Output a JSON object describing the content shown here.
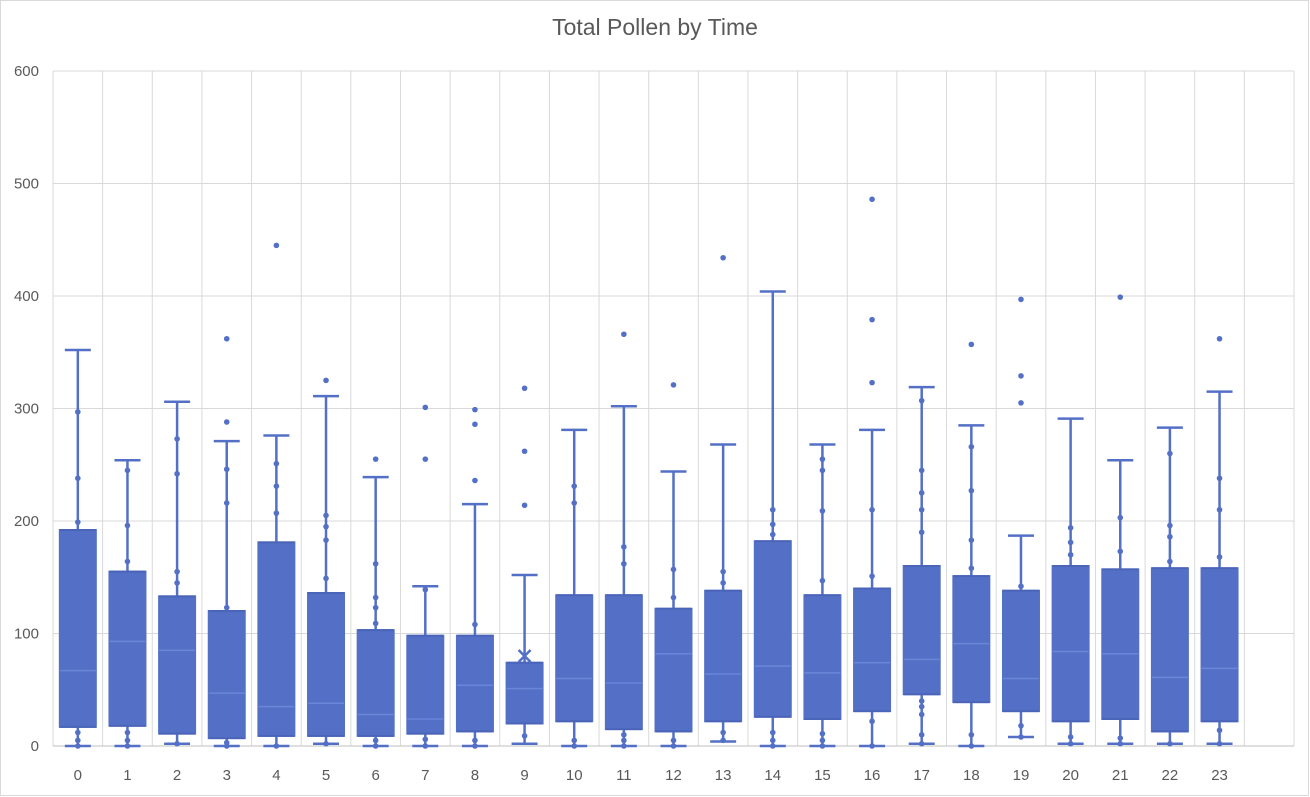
{
  "chart_data": {
    "type": "box",
    "title": "Total Pollen by Time",
    "xlabel": "",
    "ylabel": "",
    "ylim": [
      0,
      600
    ],
    "yticks": [
      0,
      100,
      200,
      300,
      400,
      500,
      600
    ],
    "grid": true,
    "legend": "none",
    "color": "#5470C6",
    "categories": [
      "0",
      "1",
      "2",
      "3",
      "4",
      "5",
      "6",
      "7",
      "8",
      "9",
      "10",
      "11",
      "12",
      "13",
      "14",
      "15",
      "16",
      "17",
      "18",
      "19",
      "20",
      "21",
      "22",
      "23"
    ],
    "boxes": [
      {
        "x": "0",
        "min": 0,
        "q1": 17,
        "median": 67,
        "q3": 192,
        "max": 352,
        "points": [
          0,
          5,
          12,
          199,
          238,
          297
        ]
      },
      {
        "x": "1",
        "min": 0,
        "q1": 18,
        "median": 93,
        "q3": 155,
        "max": 254,
        "points": [
          0,
          5,
          12,
          164,
          196,
          245
        ]
      },
      {
        "x": "2",
        "min": 2,
        "q1": 11,
        "median": 85,
        "q3": 133,
        "max": 306,
        "points": [
          2,
          145,
          155,
          242,
          273
        ]
      },
      {
        "x": "3",
        "min": 0,
        "q1": 7,
        "median": 47,
        "q3": 120,
        "max": 271,
        "points": [
          0,
          3,
          123,
          216,
          246,
          288,
          362
        ]
      },
      {
        "x": "4",
        "min": 0,
        "q1": 9,
        "median": 35,
        "q3": 181,
        "max": 276,
        "points": [
          0,
          207,
          231,
          251,
          445
        ]
      },
      {
        "x": "5",
        "min": 2,
        "q1": 9,
        "median": 38,
        "q3": 136,
        "max": 311,
        "points": [
          2,
          149,
          183,
          195,
          205,
          325
        ]
      },
      {
        "x": "6",
        "min": 0,
        "q1": 9,
        "median": 28,
        "q3": 103,
        "max": 239,
        "points": [
          0,
          5,
          109,
          123,
          132,
          162,
          255
        ]
      },
      {
        "x": "7",
        "min": 0,
        "q1": 11,
        "median": 24,
        "q3": 98,
        "max": 142,
        "points": [
          0,
          6,
          139,
          255,
          301
        ]
      },
      {
        "x": "8",
        "min": 0,
        "q1": 13,
        "median": 54,
        "q3": 98,
        "max": 215,
        "points": [
          0,
          5,
          108,
          236,
          286,
          299
        ]
      },
      {
        "x": "9",
        "min": 2,
        "q1": 20,
        "median": 51,
        "q3": 74,
        "max": 152,
        "points": [
          9,
          214,
          262,
          318
        ],
        "mean": 80
      },
      {
        "x": "10",
        "min": 0,
        "q1": 22,
        "median": 60,
        "q3": 134,
        "max": 281,
        "points": [
          0,
          5,
          216,
          231
        ]
      },
      {
        "x": "11",
        "min": 0,
        "q1": 15,
        "median": 56,
        "q3": 134,
        "max": 302,
        "points": [
          0,
          5,
          10,
          162,
          177,
          366
        ]
      },
      {
        "x": "12",
        "min": 0,
        "q1": 13,
        "median": 82,
        "q3": 122,
        "max": 244,
        "points": [
          0,
          5,
          132,
          157,
          321
        ]
      },
      {
        "x": "13",
        "min": 4,
        "q1": 22,
        "median": 64,
        "q3": 138,
        "max": 268,
        "points": [
          5,
          12,
          145,
          155,
          434
        ]
      },
      {
        "x": "14",
        "min": 0,
        "q1": 26,
        "median": 71,
        "q3": 182,
        "max": 404,
        "points": [
          0,
          5,
          12,
          188,
          197,
          210
        ]
      },
      {
        "x": "15",
        "min": 0,
        "q1": 24,
        "median": 65,
        "q3": 134,
        "max": 268,
        "points": [
          0,
          5,
          11,
          147,
          209,
          245,
          255
        ]
      },
      {
        "x": "16",
        "min": 0,
        "q1": 31,
        "median": 74,
        "q3": 140,
        "max": 281,
        "points": [
          0,
          22,
          151,
          210,
          323,
          379,
          486
        ]
      },
      {
        "x": "17",
        "min": 2,
        "q1": 46,
        "median": 77,
        "q3": 160,
        "max": 319,
        "points": [
          2,
          10,
          28,
          35,
          40,
          190,
          210,
          225,
          245,
          307
        ]
      },
      {
        "x": "18",
        "min": 0,
        "q1": 39,
        "median": 91,
        "q3": 151,
        "max": 285,
        "points": [
          0,
          10,
          158,
          183,
          227,
          266,
          357
        ]
      },
      {
        "x": "19",
        "min": 8,
        "q1": 31,
        "median": 60,
        "q3": 138,
        "max": 187,
        "points": [
          8,
          18,
          142,
          305,
          329,
          397
        ]
      },
      {
        "x": "20",
        "min": 2,
        "q1": 22,
        "median": 84,
        "q3": 160,
        "max": 291,
        "points": [
          2,
          8,
          170,
          181,
          194
        ]
      },
      {
        "x": "21",
        "min": 2,
        "q1": 24,
        "median": 82,
        "q3": 157,
        "max": 254,
        "points": [
          2,
          7,
          173,
          203,
          399
        ]
      },
      {
        "x": "22",
        "min": 2,
        "q1": 13,
        "median": 61,
        "q3": 158,
        "max": 283,
        "points": [
          2,
          164,
          186,
          196,
          260
        ]
      },
      {
        "x": "23",
        "min": 2,
        "q1": 22,
        "median": 69,
        "q3": 158,
        "max": 315,
        "points": [
          2,
          14,
          168,
          210,
          238,
          362
        ]
      }
    ]
  }
}
